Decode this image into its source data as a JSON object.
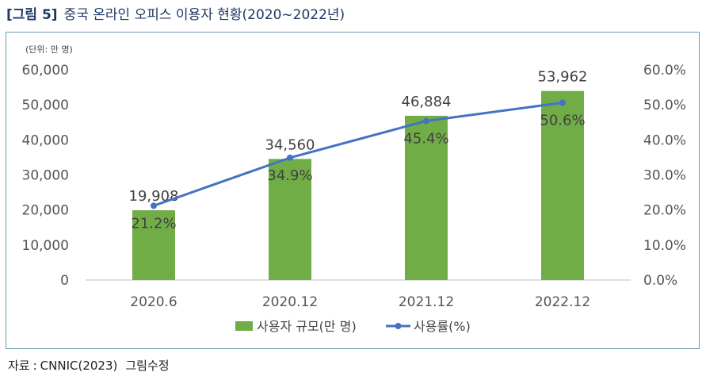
{
  "figure": {
    "number": "[그림 5]",
    "title": "중국 온라인 오피스 이용자 현황(2020~2022년)"
  },
  "source": {
    "label": "자료",
    "text": "CNNIC(2023)",
    "note": "그림수정"
  },
  "chart_data": {
    "type": "bar",
    "unit_label": "(단위: 만 명)",
    "categories": [
      "2020.6",
      "2020.12",
      "2021.12",
      "2022.12"
    ],
    "ylim": [
      0,
      60000
    ],
    "y2lim": [
      0,
      60
    ],
    "y_ticks": [
      "0",
      "10,000",
      "20,000",
      "30,000",
      "40,000",
      "50,000",
      "60,000"
    ],
    "y2_ticks": [
      "0.0%",
      "10.0%",
      "20.0%",
      "30.0%",
      "40.0%",
      "50.0%",
      "60.0%"
    ],
    "series": [
      {
        "name": "사용자 규모(만 명)",
        "kind": "bar",
        "axis": "left",
        "values": [
          19908,
          34560,
          46884,
          53962
        ],
        "labels": [
          "19,908",
          "34,560",
          "46,884",
          "53,962"
        ],
        "color": "#70ad47"
      },
      {
        "name": "사용률(%)",
        "kind": "line",
        "axis": "right",
        "values": [
          21.2,
          34.9,
          45.4,
          50.6
        ],
        "labels": [
          "21.2%",
          "34.9%",
          "45.4%",
          "50.6%"
        ],
        "color": "#4472c4"
      }
    ],
    "grid": false,
    "legend_position": "bottom"
  }
}
